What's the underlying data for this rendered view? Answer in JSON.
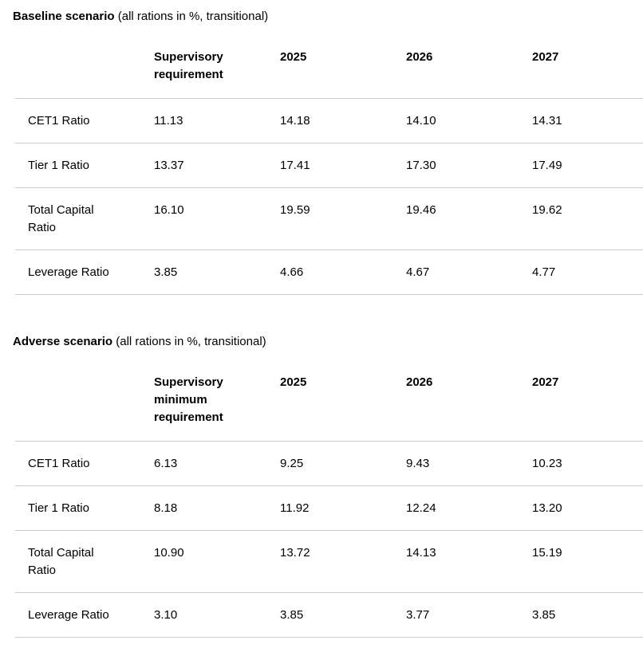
{
  "page": {
    "background": "#ffffff",
    "text_color": "#000000",
    "border_color": "#c8ccce"
  },
  "tables": [
    {
      "title_bold": "Baseline scenario",
      "title_note": " (all rations in %, transitional)",
      "columns": [
        "",
        "Supervisory requirement",
        "2025",
        "2026",
        "2027"
      ],
      "rows": [
        {
          "label": "CET1 Ratio",
          "values": [
            "11.13",
            "14.18",
            "14.10",
            "14.31"
          ]
        },
        {
          "label": "Tier 1 Ratio",
          "values": [
            "13.37",
            "17.41",
            "17.30",
            "17.49"
          ]
        },
        {
          "label": "Total Capital Ratio",
          "values": [
            "16.10",
            "19.59",
            "19.46",
            "19.62"
          ]
        },
        {
          "label": "Leverage Ratio",
          "values": [
            "3.85",
            "4.66",
            "4.67",
            "4.77"
          ]
        }
      ]
    },
    {
      "title_bold": "Adverse scenario",
      "title_note": " (all rations in %, transitional)",
      "columns": [
        "",
        "Supervisory minimum requirement",
        "2025",
        "2026",
        "2027"
      ],
      "rows": [
        {
          "label": "CET1 Ratio",
          "values": [
            "6.13",
            "9.25",
            "9.43",
            "10.23"
          ]
        },
        {
          "label": "Tier 1 Ratio",
          "values": [
            "8.18",
            "11.92",
            "12.24",
            "13.20"
          ]
        },
        {
          "label": "Total Capital Ratio",
          "values": [
            "10.90",
            "13.72",
            "14.13",
            "15.19"
          ]
        },
        {
          "label": "Leverage Ratio",
          "values": [
            "3.10",
            "3.85",
            "3.77",
            "3.85"
          ]
        }
      ]
    }
  ]
}
